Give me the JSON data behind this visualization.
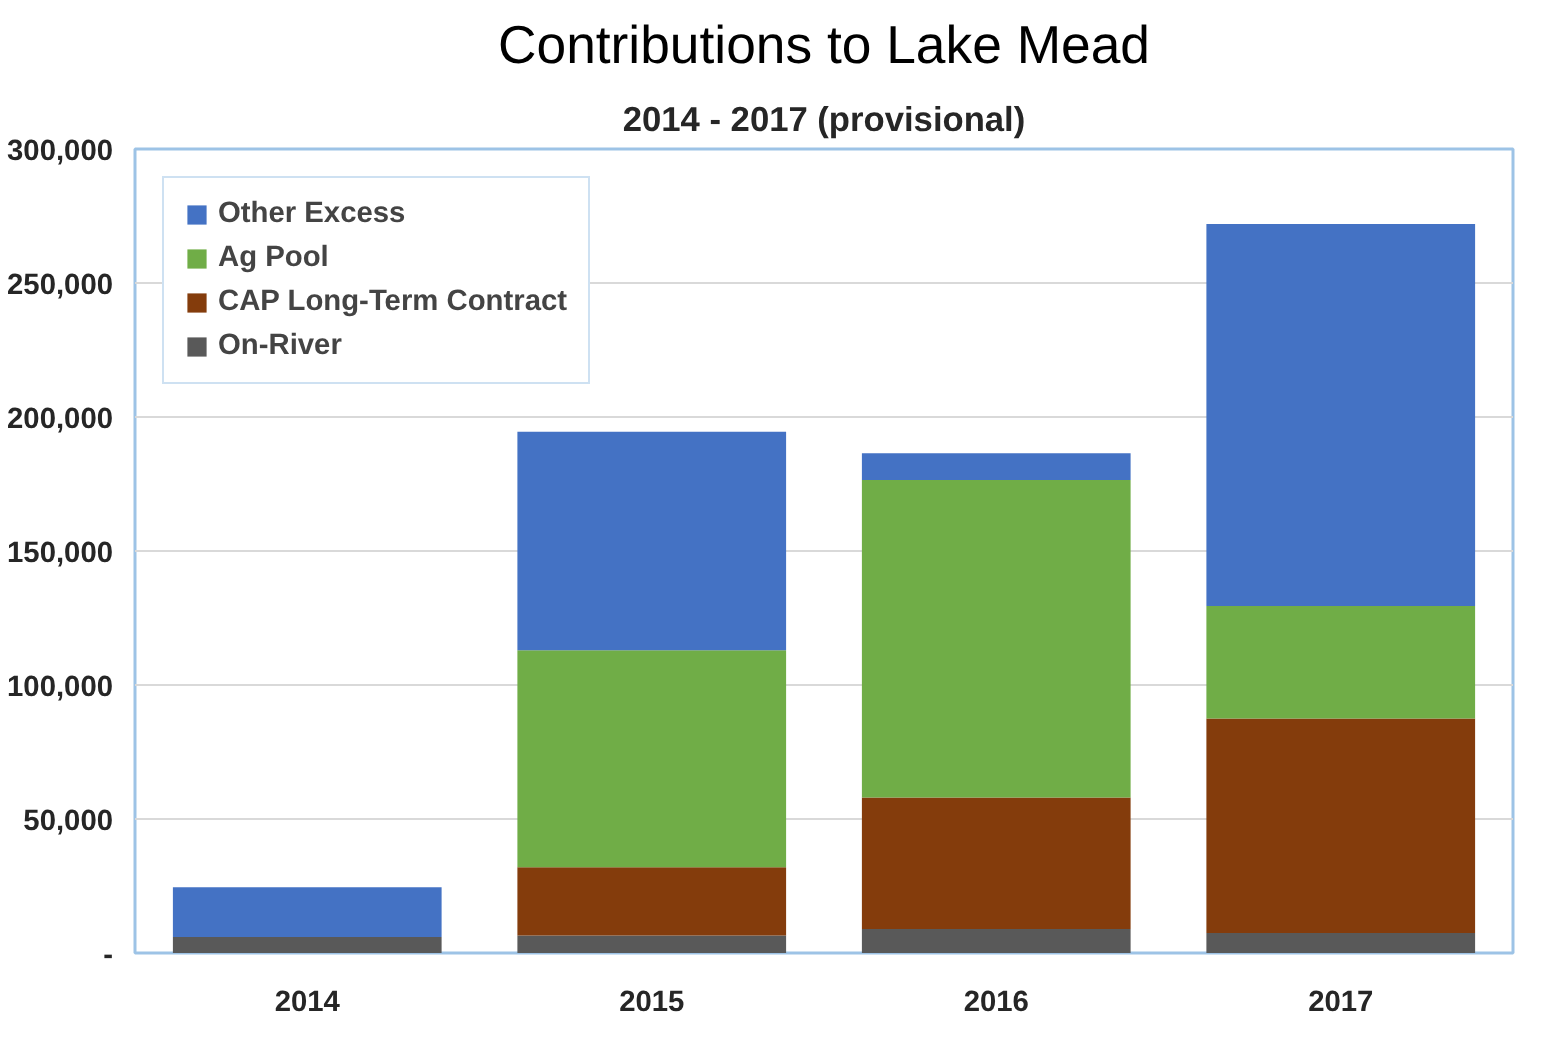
{
  "chart_data": {
    "type": "bar",
    "title": "Contributions to Lake Mead",
    "subtitle": "2014 - 2017 (provisional)",
    "stacked": true,
    "categories": [
      "2014",
      "2015",
      "2016",
      "2017"
    ],
    "series": [
      {
        "name": "On-River",
        "color": "#595959",
        "values": [
          6000,
          6500,
          9000,
          7500
        ]
      },
      {
        "name": "CAP Long-Term Contract",
        "color": "#843c0c",
        "values": [
          0,
          25500,
          49000,
          80000
        ]
      },
      {
        "name": "Ag Pool",
        "color": "#70ad47",
        "values": [
          0,
          81000,
          118500,
          42000
        ]
      },
      {
        "name": "Other Excess",
        "color": "#4472c4",
        "values": [
          18500,
          81500,
          10000,
          142500
        ]
      }
    ],
    "ylim": [
      0,
      300000
    ],
    "yticks": [
      {
        "value": 0,
        "label": "-"
      },
      {
        "value": 50000,
        "label": "50,000"
      },
      {
        "value": 100000,
        "label": "100,000"
      },
      {
        "value": 150000,
        "label": "150,000"
      },
      {
        "value": 200000,
        "label": "200,000"
      },
      {
        "value": 250000,
        "label": "250,000"
      },
      {
        "value": 300000,
        "label": "300,000"
      }
    ],
    "grid": "y",
    "legend": "top left"
  }
}
